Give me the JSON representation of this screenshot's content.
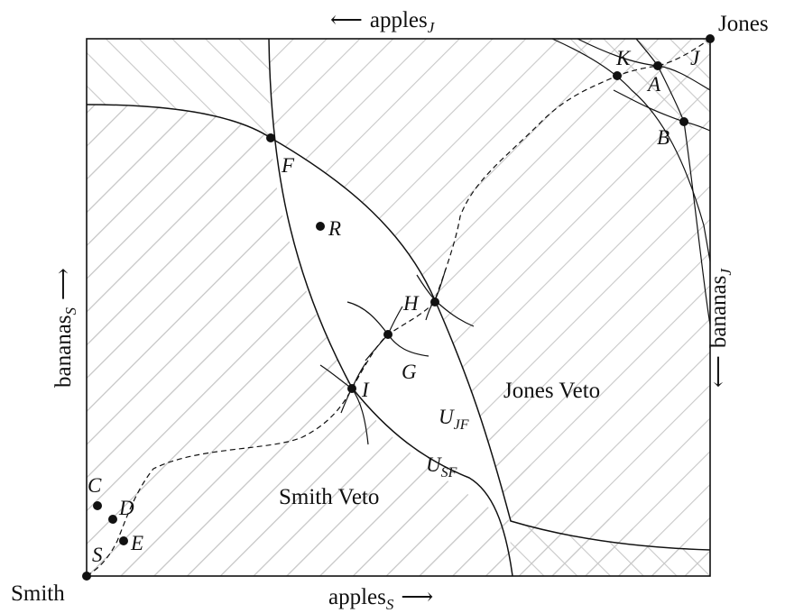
{
  "corners": {
    "origin_smith": "Smith",
    "origin_jones": "Jones"
  },
  "axes": {
    "bottom": {
      "text": "apples",
      "sub": "S",
      "arrow": "⟶"
    },
    "top": {
      "text": "apples",
      "sub": "J",
      "arrow": "⟵"
    },
    "left": {
      "text": "bananas",
      "sub": "S",
      "arrow": "⟶"
    },
    "right": {
      "text": "bananas",
      "sub": "J",
      "arrow": "⟵"
    }
  },
  "regions": {
    "smith_veto": "Smith Veto",
    "jones_veto": "Jones Veto"
  },
  "curves": {
    "u_jf": {
      "main": "U",
      "sub": "JF"
    },
    "u_sf": {
      "main": "U",
      "sub": "SF"
    }
  },
  "points": {
    "F": "F",
    "R": "R",
    "H": "H",
    "G": "G",
    "I": "I",
    "K": "K",
    "A": "A",
    "J": "J",
    "B": "B",
    "C": "C",
    "D": "D",
    "E": "E",
    "S": "S"
  },
  "colors": {
    "ink": "#111111",
    "hatch": "#c8c8c8"
  }
}
